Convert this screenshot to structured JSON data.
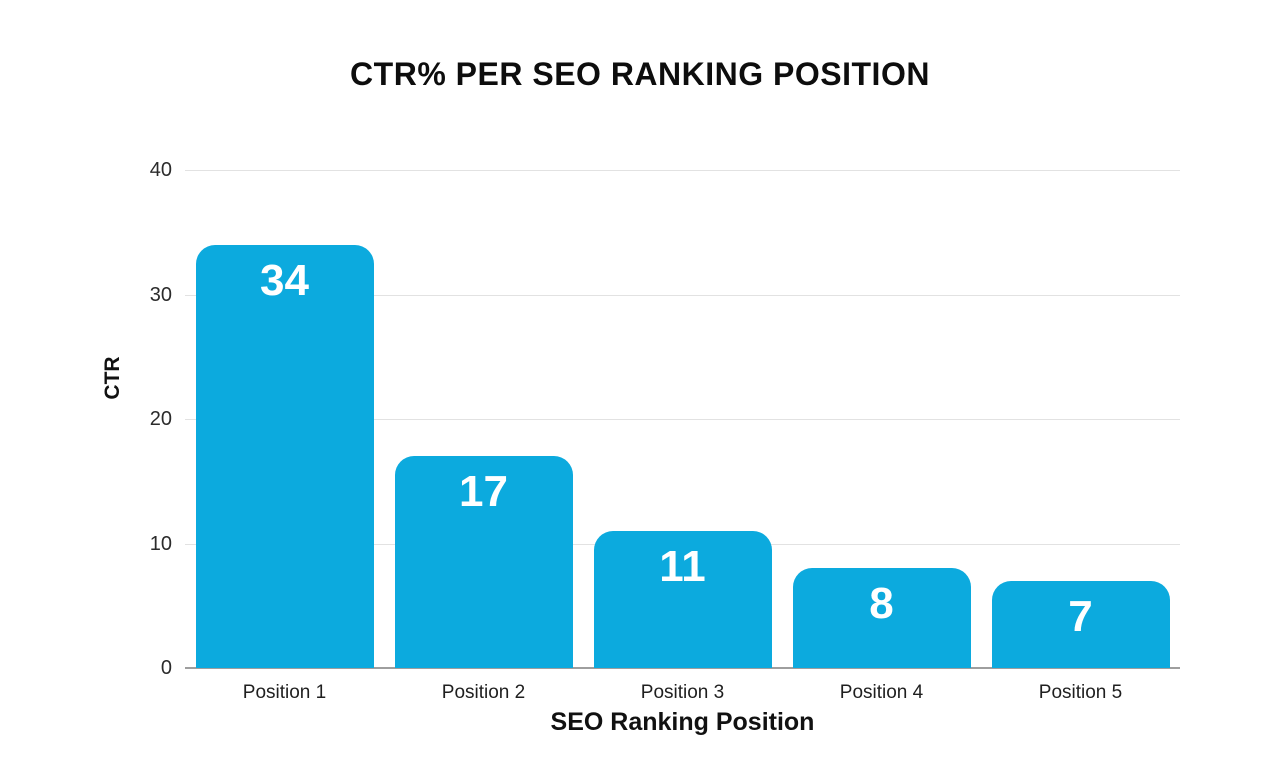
{
  "page": {
    "background_color": "#ffffff"
  },
  "chart_data": {
    "type": "bar",
    "title": "CTR% PER SEO RANKING POSITION",
    "categories": [
      "Position 1",
      "Position 2",
      "Position 3",
      "Position 4",
      "Position 5"
    ],
    "values": [
      34,
      17,
      11,
      8,
      7
    ],
    "value_labels": [
      "34",
      "17",
      "11",
      "8",
      "7"
    ],
    "xlabel": "SEO Ranking Position",
    "ylabel": "CTR",
    "ylim": [
      0,
      40
    ],
    "yticks": [
      0,
      10,
      20,
      30,
      40
    ],
    "grid": "horizontal",
    "legend_position": "none",
    "bar_color": "#0caade",
    "value_label_color": "#ffffff",
    "gridline_color": "#e2e2e2",
    "axis_line_color": "#9e9e9e",
    "title_color": "#0d0d0d"
  }
}
